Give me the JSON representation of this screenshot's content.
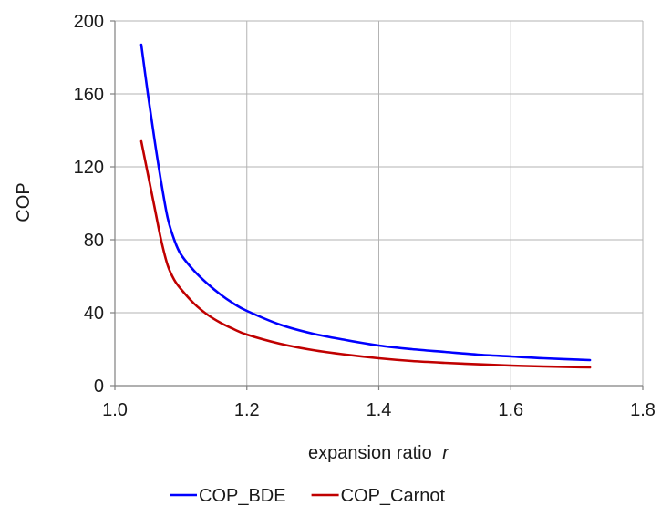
{
  "chart_data": {
    "type": "line",
    "title": "",
    "xlabel": "expansion ratio",
    "xlabel_var": "r",
    "ylabel": "COP",
    "xlim": [
      1.0,
      1.8
    ],
    "ylim": [
      0,
      200
    ],
    "xticks": [
      "1.0",
      "1.2",
      "1.4",
      "1.6",
      "1.8"
    ],
    "yticks": [
      "0",
      "40",
      "80",
      "120",
      "160",
      "200"
    ],
    "grid": true,
    "legend_position": "bottom",
    "series": [
      {
        "name": "COP_BDE",
        "color": "#0000ff",
        "x": [
          1.04,
          1.05,
          1.06,
          1.07,
          1.08,
          1.09,
          1.1,
          1.12,
          1.14,
          1.16,
          1.18,
          1.2,
          1.25,
          1.3,
          1.35,
          1.4,
          1.45,
          1.5,
          1.55,
          1.6,
          1.65,
          1.72
        ],
        "y": [
          187,
          160,
          135,
          112,
          92,
          80,
          72,
          63,
          56,
          50,
          45,
          41,
          33.5,
          28.5,
          25,
          22,
          20,
          18.5,
          17,
          16,
          15,
          14
        ]
      },
      {
        "name": "COP_Carnot",
        "color": "#c00000",
        "x": [
          1.04,
          1.05,
          1.06,
          1.07,
          1.08,
          1.09,
          1.1,
          1.12,
          1.14,
          1.16,
          1.18,
          1.2,
          1.25,
          1.3,
          1.35,
          1.4,
          1.45,
          1.5,
          1.55,
          1.6,
          1.65,
          1.72
        ],
        "y": [
          134,
          116,
          98,
          80,
          66,
          58,
          53,
          45,
          39,
          34.5,
          31,
          28,
          23,
          19.5,
          17,
          15,
          13.5,
          12.5,
          11.7,
          11,
          10.5,
          10
        ]
      }
    ]
  }
}
